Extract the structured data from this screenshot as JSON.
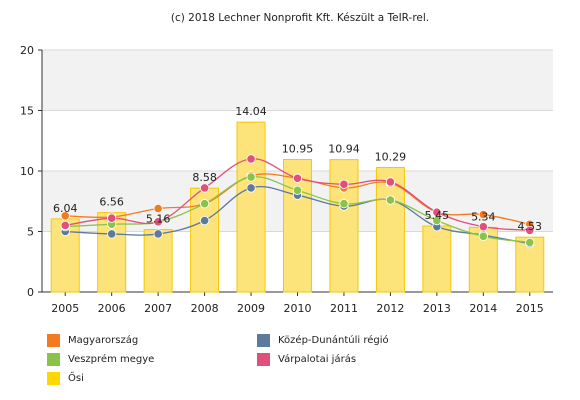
{
  "credit": "(c) 2018 Lechner Nonprofit Kft. Készült a TeIR-rel.",
  "chart_data": {
    "type": "bar",
    "x": [
      "2005",
      "2006",
      "2007",
      "2008",
      "2009",
      "2010",
      "2011",
      "2012",
      "2013",
      "2014",
      "2015"
    ],
    "ylim": [
      0,
      20
    ],
    "yticks": [
      0,
      5,
      10,
      15,
      20
    ],
    "grid": true,
    "legend_position": "bottom",
    "bar_series": {
      "name": "Ősi",
      "color": "#ffd700",
      "values": [
        6.04,
        6.56,
        5.16,
        8.58,
        14.04,
        10.95,
        10.94,
        10.29,
        5.45,
        5.34,
        4.53
      ],
      "labels": [
        "6.04",
        "6.56",
        "5.16",
        "8.58",
        "14.04",
        "10.95",
        "10.94",
        "10.29",
        "5.45",
        "5.34",
        "4.53"
      ]
    },
    "line_series": [
      {
        "name": "Magyarország",
        "color": "#f47a20",
        "values": [
          6.3,
          6.2,
          6.9,
          7.3,
          9.6,
          9.4,
          8.6,
          9.0,
          6.6,
          6.4,
          5.6
        ]
      },
      {
        "name": "Közép-Dunántúli régió",
        "color": "#5b7a9c",
        "values": [
          5.0,
          4.8,
          4.8,
          5.9,
          8.6,
          8.0,
          7.1,
          7.6,
          5.4,
          4.7,
          4.0
        ]
      },
      {
        "name": "Veszprém megye",
        "color": "#8bc34a",
        "values": [
          5.4,
          5.6,
          5.8,
          7.3,
          9.5,
          8.4,
          7.3,
          7.6,
          5.9,
          4.6,
          4.1
        ]
      },
      {
        "name": "Várpalotai járás",
        "color": "#e0507a",
        "values": [
          5.5,
          6.1,
          5.8,
          8.6,
          11.0,
          9.4,
          8.9,
          9.1,
          6.6,
          5.4,
          5.1
        ]
      }
    ]
  },
  "legend": [
    {
      "label": "Magyarország",
      "color": "#f47a20"
    },
    {
      "label": "Közép-Dunántúli régió",
      "color": "#5b7a9c"
    },
    {
      "label": "Veszprém megye",
      "color": "#8bc34a"
    },
    {
      "label": "Várpalotai járás",
      "color": "#e0507a"
    },
    {
      "label": "Ősi",
      "color": "#ffd700"
    }
  ]
}
